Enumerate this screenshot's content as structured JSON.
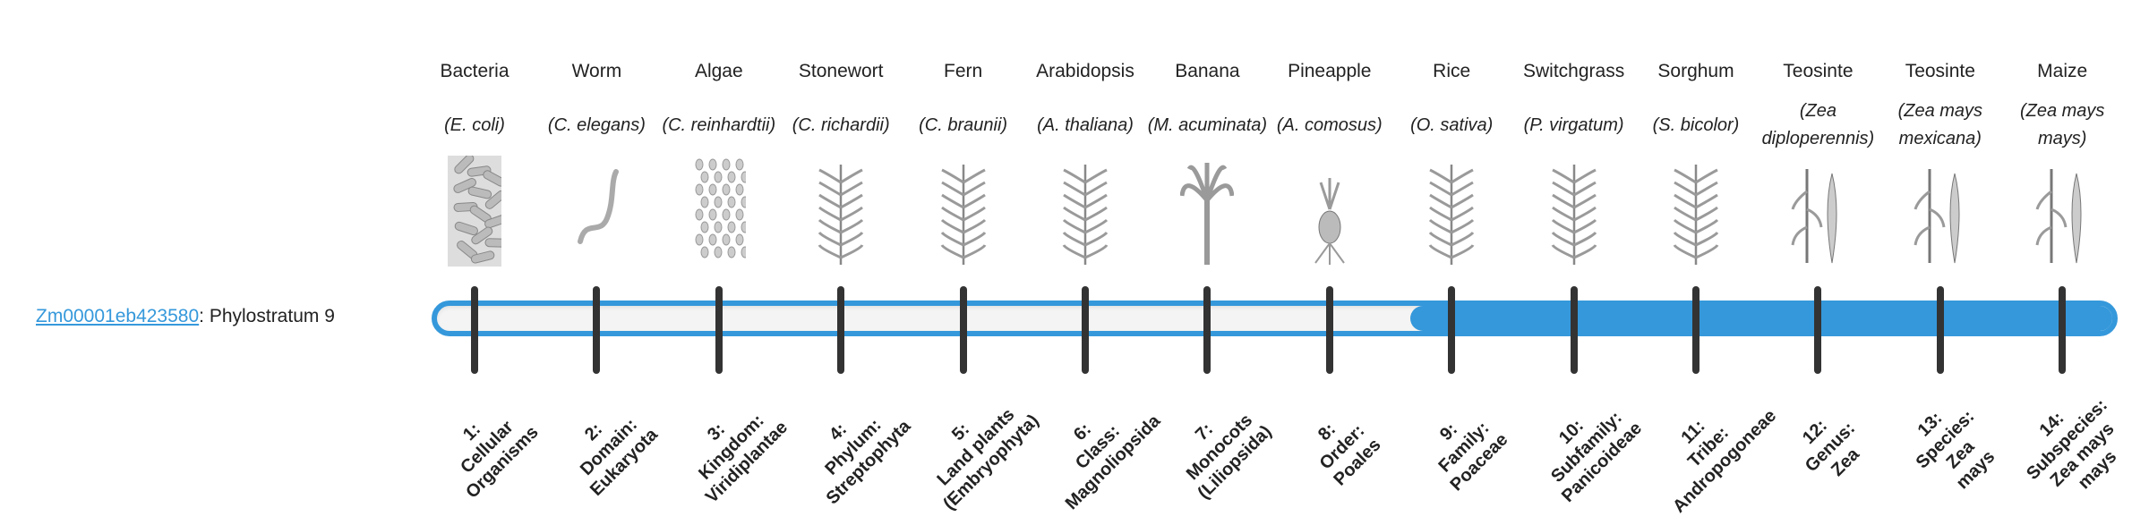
{
  "gene": {
    "id": "Zm00001eb423580",
    "separator": ": ",
    "status": "Phylostratum 9"
  },
  "progress": {
    "value": 9,
    "max": 14,
    "color": "#3598db",
    "track_color": "#f4f4f4",
    "tick_color": "#333333"
  },
  "organisms": [
    {
      "common": "Bacteria",
      "species": "(E. coli)",
      "icon": "bacteria-icon",
      "stratum": [
        "1:",
        "Cellular",
        "Organisms"
      ]
    },
    {
      "common": "Worm",
      "species": "(C. elegans)",
      "icon": "worm-icon",
      "stratum": [
        "2:",
        "Domain:",
        "Eukaryota"
      ]
    },
    {
      "common": "Algae",
      "species": "(C. reinhardtii)",
      "icon": "algae-icon",
      "stratum": [
        "3:",
        "Kingdom:",
        "Viridiplantae"
      ]
    },
    {
      "common": "Stonewort",
      "species": "(C. richardii)",
      "icon": "stonewort-icon",
      "stratum": [
        "4:",
        "Phylum:",
        "Streptophyta"
      ]
    },
    {
      "common": "Fern",
      "species": "(C. braunii)",
      "icon": "fern-icon",
      "stratum": [
        "5:",
        "Land plants",
        "(Embryophyta)"
      ]
    },
    {
      "common": "Arabidopsis",
      "species": "(A. thaliana)",
      "icon": "arabidopsis-icon",
      "stratum": [
        "6:",
        "Class:",
        "Magnoliopsida"
      ]
    },
    {
      "common": "Banana",
      "species": "(M. acuminata)",
      "icon": "banana-icon",
      "stratum": [
        "7:",
        "Monocots",
        "(Liliopsida)"
      ]
    },
    {
      "common": "Pineapple",
      "species": "(A. comosus)",
      "icon": "pineapple-icon",
      "stratum": [
        "8:",
        "Order:",
        "Poales"
      ]
    },
    {
      "common": "Rice",
      "species": "(O. sativa)",
      "icon": "rice-icon",
      "stratum": [
        "9:",
        "Family:",
        "Poaceae"
      ]
    },
    {
      "common": "Switchgrass",
      "species": "(P. virgatum)",
      "icon": "switchgrass-icon",
      "stratum": [
        "10:",
        "Subfamily:",
        "Panicoideae"
      ]
    },
    {
      "common": "Sorghum",
      "species": "(S. bicolor)",
      "icon": "sorghum-icon",
      "stratum": [
        "11:",
        "Tribe:",
        "Andropogoneae"
      ]
    },
    {
      "common": "Teosinte",
      "species": "(Zea diploperennis)",
      "icon": "teosinte-icon",
      "stratum": [
        "12:",
        "Genus:",
        "Zea"
      ]
    },
    {
      "common": "Teosinte",
      "species": "(Zea mays mexicana)",
      "icon": "teosinte-icon",
      "stratum": [
        "13:",
        "Species:",
        "Zea",
        "mays"
      ]
    },
    {
      "common": "Maize",
      "species": "(Zea mays mays)",
      "icon": "maize-icon",
      "stratum": [
        "14:",
        "Subspecies:",
        "Zea mays",
        "mays"
      ]
    }
  ]
}
